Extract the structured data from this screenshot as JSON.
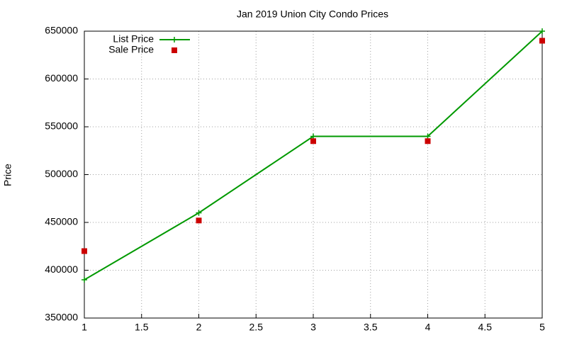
{
  "chart_data": {
    "type": "line",
    "title": "Jan 2019 Union City Condo Prices",
    "y_label": "Price",
    "x": [
      1,
      2,
      3,
      4,
      5
    ],
    "series": [
      {
        "name": "List Price",
        "color": "#009900",
        "values": [
          390000,
          460000,
          540000,
          540000,
          650000
        ],
        "line": true,
        "marker": "plus"
      },
      {
        "name": "Sale Price",
        "color": "#cc0000",
        "values": [
          420000,
          452000,
          535000,
          535000,
          640000
        ],
        "line": false,
        "marker": "square"
      }
    ],
    "xlim": [
      1,
      5
    ],
    "xticks": [
      1,
      1.5,
      2,
      2.5,
      3,
      3.5,
      4,
      4.5,
      5
    ],
    "ylim": [
      350000,
      650000
    ],
    "yticks": [
      350000,
      400000,
      450000,
      500000,
      550000,
      600000,
      650000
    ],
    "grid": true,
    "legend": "top-left"
  }
}
